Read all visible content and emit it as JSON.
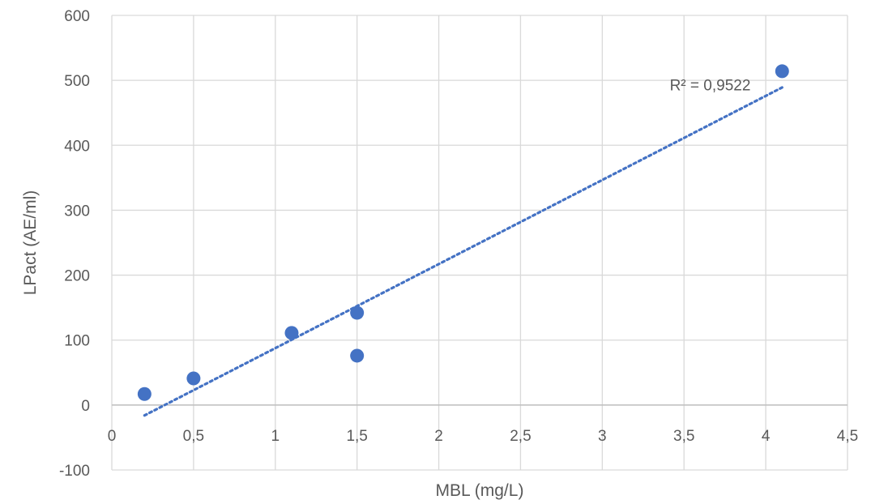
{
  "chart_data": {
    "type": "scatter",
    "title": "",
    "xlabel": "MBL (mg/L)",
    "ylabel": "LPact (AE/ml)",
    "xlim": [
      0,
      4.5
    ],
    "ylim": [
      -100,
      600
    ],
    "x_ticks": [
      0,
      0.5,
      1,
      1.5,
      2,
      2.5,
      3,
      3.5,
      4,
      4.5
    ],
    "x_tick_labels": [
      "0",
      "0,5",
      "1",
      "1,5",
      "2",
      "2,5",
      "3",
      "3,5",
      "4",
      "4,5"
    ],
    "y_ticks": [
      -100,
      0,
      100,
      200,
      300,
      400,
      500,
      600
    ],
    "y_tick_labels": [
      "-100",
      "0",
      "100",
      "200",
      "300",
      "400",
      "500",
      "600"
    ],
    "grid": true,
    "legend": "none",
    "series": [
      {
        "marker_color": "#4472c4",
        "points": [
          {
            "x": 0.2,
            "y": 17
          },
          {
            "x": 0.5,
            "y": 41
          },
          {
            "x": 1.1,
            "y": 111
          },
          {
            "x": 1.5,
            "y": 142
          },
          {
            "x": 1.5,
            "y": 76
          },
          {
            "x": 4.1,
            "y": 514
          }
        ]
      }
    ],
    "trendline": {
      "style": "dotted",
      "color": "#4472c4",
      "x_start": 0.2,
      "x_end": 4.1,
      "y_start": -16,
      "y_end": 489
    },
    "annotations": [
      {
        "text": "R² = 0,9522",
        "x": 3.66,
        "y": 482
      }
    ]
  }
}
